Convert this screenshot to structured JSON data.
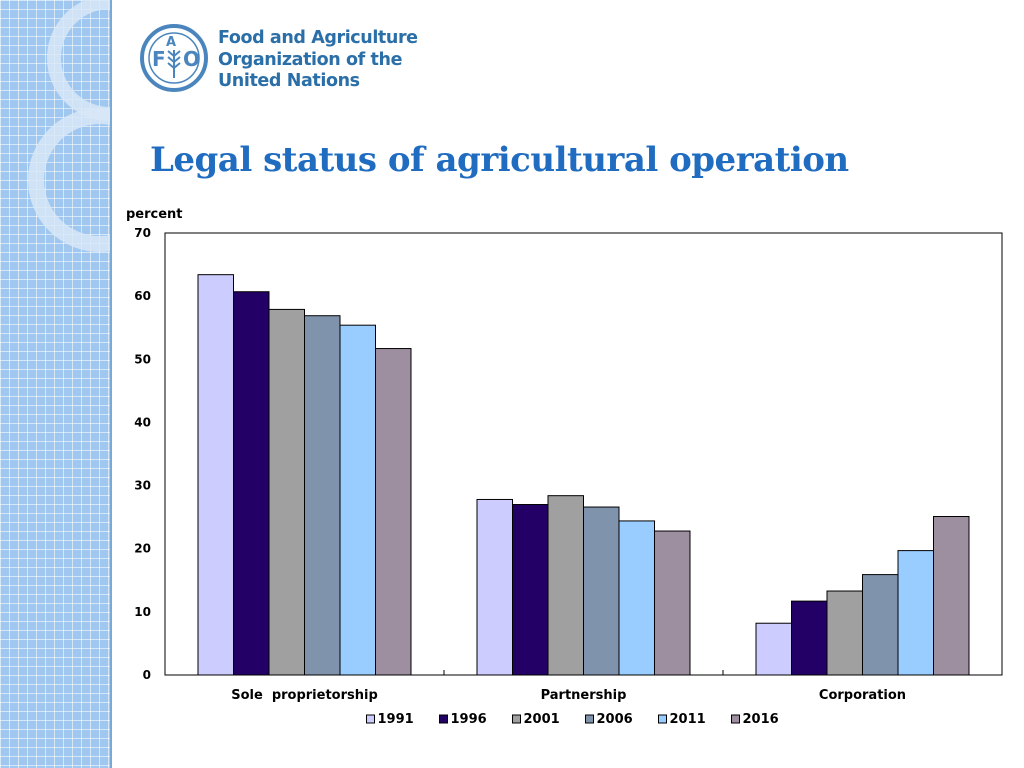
{
  "header": {
    "logo_lines": [
      "Food and Agriculture",
      "Organization of the",
      "United Nations"
    ],
    "logo_emblem": "fao-emblem",
    "title": "Legal status of agricultural operation"
  },
  "chart_data": {
    "type": "bar",
    "title": "Legal status of agricultural operation",
    "ylabel": "percent",
    "xlabel": "",
    "ylim": [
      0,
      70
    ],
    "yticks": [
      0,
      10,
      20,
      30,
      40,
      50,
      60,
      70
    ],
    "grid": false,
    "legend_position": "bottom",
    "categories": [
      "Sole  proprietorship",
      "Partnership",
      "Corporation"
    ],
    "series": [
      {
        "name": "1991",
        "values": [
          63.4,
          27.8,
          8.2
        ],
        "color": "#ccccff"
      },
      {
        "name": "1996",
        "values": [
          60.7,
          27.0,
          11.7
        ],
        "color": "#220066"
      },
      {
        "name": "2001",
        "values": [
          57.9,
          28.4,
          13.3
        ],
        "color": "#a0a0a0"
      },
      {
        "name": "2006",
        "values": [
          56.9,
          26.6,
          15.9
        ],
        "color": "#7f93ad"
      },
      {
        "name": "2011",
        "values": [
          55.4,
          24.4,
          19.7
        ],
        "color": "#99ccff"
      },
      {
        "name": "2016",
        "values": [
          51.7,
          22.8,
          25.1
        ],
        "color": "#9e8fa0"
      }
    ]
  }
}
